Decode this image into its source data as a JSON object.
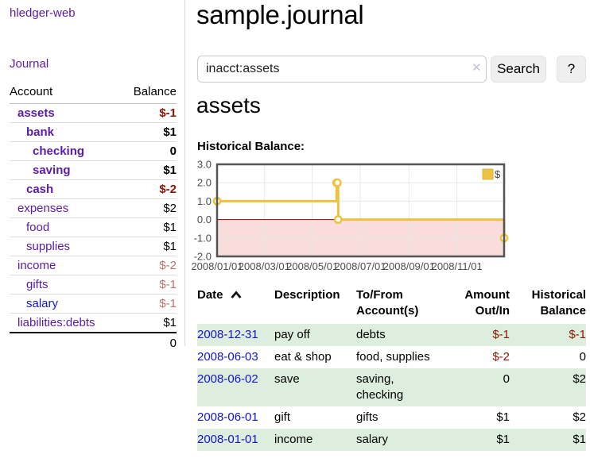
{
  "app": {
    "brand": "hledger-web",
    "nav_journal": "Journal"
  },
  "sidebar": {
    "columns": {
      "account": "Account",
      "balance": "Balance"
    },
    "accounts": [
      {
        "name": "assets",
        "indent": 1,
        "bold": true,
        "link": "purple",
        "balance": "$-1",
        "style": "neg-strong"
      },
      {
        "name": "bank",
        "indent": 2,
        "bold": true,
        "link": "purple",
        "balance": "$1",
        "style": ""
      },
      {
        "name": "checking",
        "indent": 3,
        "bold": true,
        "link": "purple",
        "balance": "0",
        "style": ""
      },
      {
        "name": "saving",
        "indent": 3,
        "bold": true,
        "link": "purple",
        "balance": "$1",
        "style": ""
      },
      {
        "name": "cash",
        "indent": 2,
        "bold": true,
        "link": "purple",
        "balance": "$-2",
        "style": "neg-strong"
      },
      {
        "name": "expenses",
        "indent": 1,
        "bold": false,
        "link": "purple",
        "balance": "$2",
        "style": ""
      },
      {
        "name": "food",
        "indent": 2,
        "bold": false,
        "link": "purple",
        "balance": "$1",
        "style": ""
      },
      {
        "name": "supplies",
        "indent": 2,
        "bold": false,
        "link": "purple",
        "balance": "$1",
        "style": ""
      },
      {
        "name": "income",
        "indent": 1,
        "bold": false,
        "link": "purple",
        "balance": "$-2",
        "style": "neg-soft"
      },
      {
        "name": "gifts",
        "indent": 2,
        "bold": false,
        "link": "purple",
        "balance": "$-1",
        "style": "neg-soft"
      },
      {
        "name": "salary",
        "indent": 2,
        "bold": false,
        "link": "blue",
        "balance": "$-1",
        "style": "neg-soft"
      },
      {
        "name": "liabilities:debts",
        "indent": 1,
        "bold": false,
        "link": "purple",
        "balance": "$1",
        "style": ""
      }
    ],
    "total": "0"
  },
  "main": {
    "title": "sample.journal",
    "search": {
      "value": "inacct:assets",
      "clear_icon": "✕",
      "button": "Search",
      "help_button": "?"
    },
    "account_heading": "assets",
    "chart_heading": "Historical Balance:"
  },
  "chart_data": {
    "type": "line",
    "step": true,
    "title": "Historical Balance:",
    "series": [
      {
        "name": "$",
        "color": "#edc240",
        "points": [
          [
            "2008-01-01",
            1
          ],
          [
            "2008-06-01",
            2
          ],
          [
            "2008-06-02",
            2
          ],
          [
            "2008-06-03",
            0
          ],
          [
            "2008-12-31",
            -1
          ]
        ]
      }
    ],
    "xlim": [
      "2008-01-01",
      "2008-12-31"
    ],
    "ylim": [
      -2,
      3
    ],
    "y_ticks": [
      3,
      2,
      1,
      0,
      -1,
      -2
    ],
    "x_ticks": [
      {
        "date": "2008-01-01",
        "label": "2008/01/01"
      },
      {
        "date": "2008-03-01",
        "label": "2008/03/01"
      },
      {
        "date": "2008-05-01",
        "label": "2008/05/01"
      },
      {
        "date": "2008-07-01",
        "label": "2008/07/01"
      },
      {
        "date": "2008-09-01",
        "label": "2008/09/01"
      },
      {
        "date": "2008-11-01",
        "label": "2008/11/01"
      }
    ],
    "grid": true,
    "legend_position": "top-right",
    "colors": {
      "negative_fill": "#f9dcdc",
      "zero_line": "#8b0000",
      "gridline": "#e8e8e8",
      "plot_border": "#545454"
    }
  },
  "transactions": {
    "headers": {
      "date": "Date",
      "description": "Description",
      "tofrom_line1": "To/From",
      "tofrom_line2": "Account(s)",
      "amount_line1": "Amount",
      "amount_line2": "Out/In",
      "balance_line1": "Historical",
      "balance_line2": "Balance"
    },
    "rows": [
      {
        "date": "2008-12-31",
        "description": "pay off",
        "accounts": "debts",
        "amount": "$-1",
        "amount_neg": true,
        "balance": "$-1",
        "balance_neg": true
      },
      {
        "date": "2008-06-03",
        "description": "eat & shop",
        "accounts": "food, supplies",
        "amount": "$-2",
        "amount_neg": true,
        "balance": "0",
        "balance_neg": false
      },
      {
        "date": "2008-06-02",
        "description": "save",
        "accounts": "saving, checking",
        "amount": "0",
        "amount_neg": false,
        "balance": "$2",
        "balance_neg": false
      },
      {
        "date": "2008-06-01",
        "description": "gift",
        "accounts": "gifts",
        "amount": "$1",
        "amount_neg": false,
        "balance": "$2",
        "balance_neg": false
      },
      {
        "date": "2008-01-01",
        "description": "income",
        "accounts": "salary",
        "amount": "$1",
        "amount_neg": false,
        "balance": "$1",
        "balance_neg": false
      }
    ]
  },
  "colors": {
    "link_purple": "#5a1ca8",
    "link_blue": "#1414cc",
    "negative_strong": "#8b1500",
    "negative_soft": "#bc7272",
    "row_green": "#deeede",
    "chart_series_yellow": "#edc240"
  }
}
